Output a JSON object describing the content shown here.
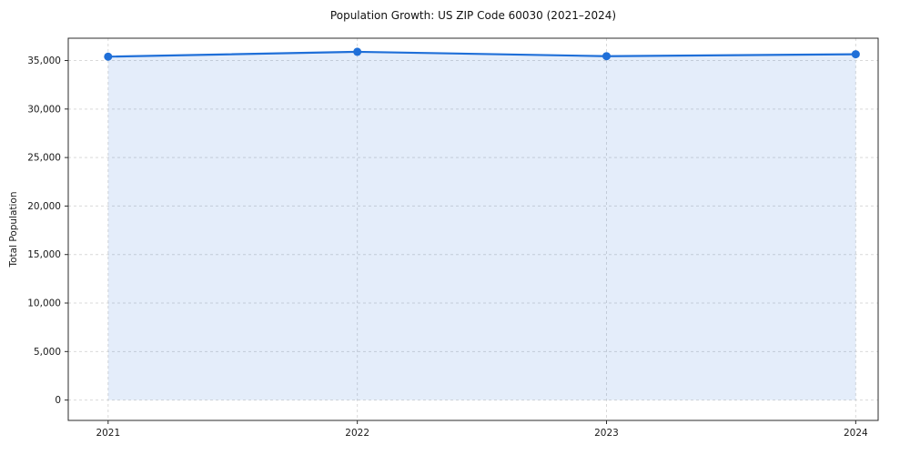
{
  "chart_data": {
    "type": "line",
    "title": "Population Growth: US ZIP Code 60030 (2021–2024)",
    "xlabel": "",
    "ylabel": "Total Population",
    "categories": [
      "2021",
      "2022",
      "2023",
      "2024"
    ],
    "x": [
      2021,
      2022,
      2023,
      2024
    ],
    "series": [
      {
        "name": "Total Population",
        "values": [
          35400,
          35900,
          35450,
          35650
        ]
      }
    ],
    "values": [
      35400,
      35900,
      35450,
      35650
    ],
    "yticks": {
      "values": [
        0,
        5000,
        10000,
        15000,
        20000,
        25000,
        30000,
        35000
      ],
      "labels": [
        "0",
        "5,000",
        "10,000",
        "15,000",
        "20,000",
        "25,000",
        "30,000",
        "35,000"
      ]
    },
    "xlim": [
      2020.84,
      2024.09
    ],
    "ylim": [
      -2100,
      37300
    ],
    "grid": "dashed-both-axes",
    "legend": "none",
    "marker": "circle",
    "area_fill": true,
    "colors": {
      "line": "#1f6fd8",
      "fill": "#1f6fd8",
      "fill_opacity": 0.12,
      "grid": "#d9d9d9",
      "spine": "#2b2b2b",
      "text": "#1a1a1a"
    }
  }
}
